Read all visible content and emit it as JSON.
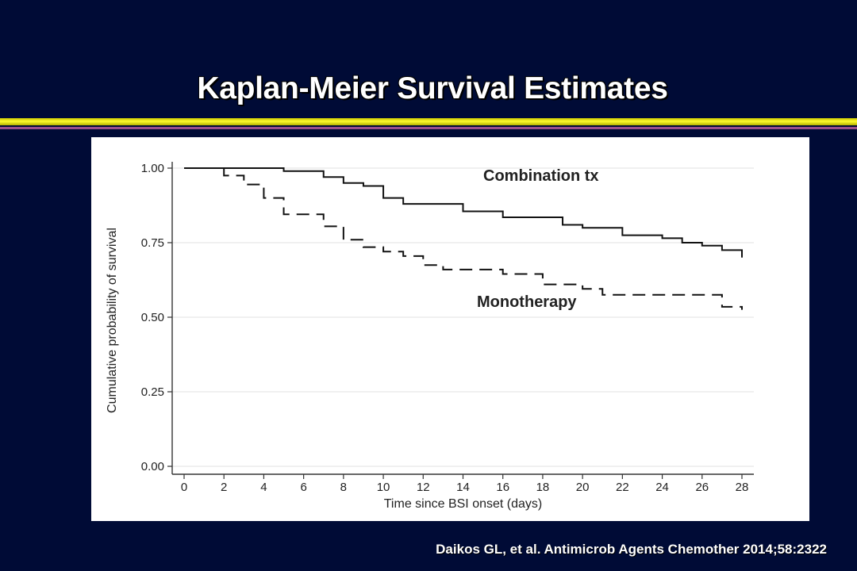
{
  "slide": {
    "title": "Kaplan-Meier Survival Estimates",
    "citation": "Daikos GL, et al. Antimicrob Agents Chemother 2014;58:2322",
    "colors": {
      "background": "#000b36",
      "accent_bar": "#fdfb2e",
      "accent_line": "#9a4f8c"
    }
  },
  "chart_data": {
    "type": "line",
    "xlabel": "Time since BSI onset (days)",
    "ylabel": "Cumulative probability of survival",
    "xlim": [
      0,
      28
    ],
    "ylim": [
      0,
      1
    ],
    "x_ticks": [
      "0",
      "2",
      "4",
      "6",
      "8",
      "10",
      "12",
      "14",
      "16",
      "18",
      "20",
      "22",
      "24",
      "26",
      "28"
    ],
    "y_ticks": [
      "0.00",
      "0.25",
      "0.50",
      "0.75",
      "1.00"
    ],
    "grid": "horizontal",
    "step": true,
    "series": [
      {
        "name": "Combination tx",
        "line_style": "solid",
        "x": [
          0,
          5,
          7,
          8,
          9,
          10,
          11,
          14,
          16,
          19,
          20,
          22,
          24,
          25,
          26,
          27,
          28
        ],
        "y": [
          1.0,
          0.99,
          0.97,
          0.95,
          0.94,
          0.9,
          0.88,
          0.855,
          0.835,
          0.81,
          0.8,
          0.775,
          0.765,
          0.75,
          0.74,
          0.725,
          0.7
        ]
      },
      {
        "name": "Monotherapy",
        "line_style": "dashed",
        "x": [
          0,
          2,
          3,
          4,
          5,
          7,
          8,
          9,
          10,
          11,
          12,
          13,
          16,
          18,
          20,
          21,
          27,
          28
        ],
        "y": [
          1.0,
          0.975,
          0.945,
          0.9,
          0.845,
          0.805,
          0.76,
          0.735,
          0.72,
          0.705,
          0.675,
          0.66,
          0.645,
          0.61,
          0.595,
          0.575,
          0.535,
          0.525
        ]
      }
    ]
  }
}
